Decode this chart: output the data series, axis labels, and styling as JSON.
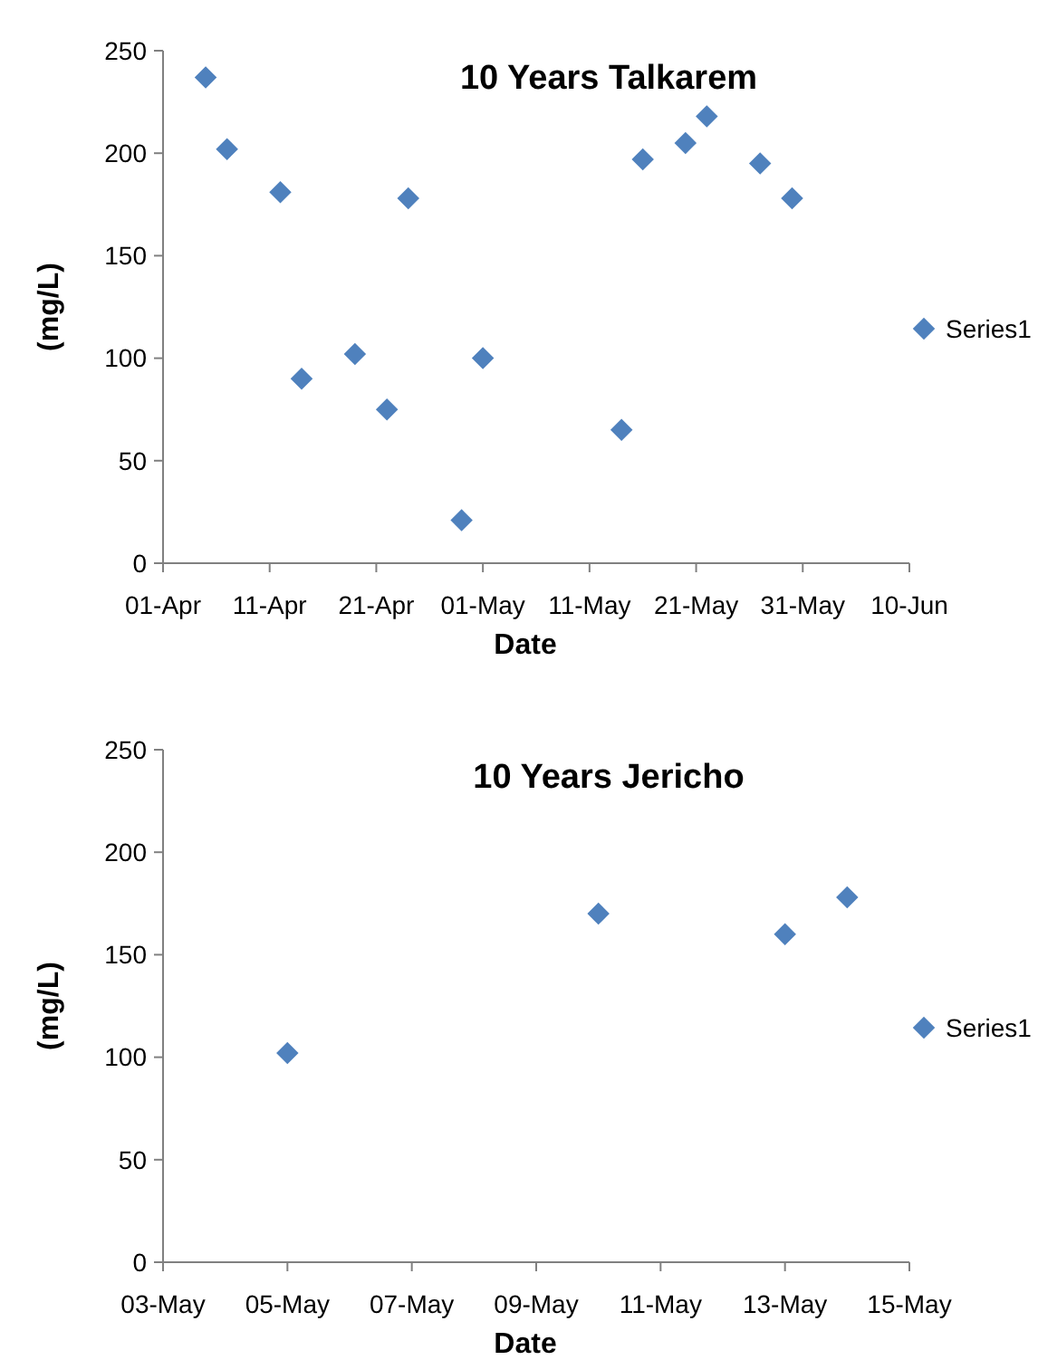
{
  "chart_data": [
    {
      "type": "scatter",
      "title": "10 Years Talkarem",
      "xlabel": "Date",
      "ylabel": "(mg/L)",
      "legend": "right",
      "marker": "diamond",
      "x": [
        "--04-05",
        "--04-07",
        "--04-12",
        "--04-14",
        "--04-19",
        "--04-22",
        "--04-24",
        "--04-29",
        "--05-01",
        "--05-14",
        "--05-16",
        "--05-20",
        "--05-22",
        "--05-27",
        "--05-30"
      ],
      "series": [
        {
          "name": "Series1",
          "color": "#4f81bd",
          "values": [
            237,
            202,
            181,
            90,
            102,
            75,
            178,
            21,
            100,
            65,
            197,
            205,
            218,
            195,
            178
          ]
        }
      ],
      "xlim": [
        "--04-01",
        "--06-10"
      ],
      "xticks": [
        {
          "value": "--04-01",
          "label": "01-Apr"
        },
        {
          "value": "--04-11",
          "label": "11-Apr"
        },
        {
          "value": "--04-21",
          "label": "21-Apr"
        },
        {
          "value": "--05-01",
          "label": "01-May"
        },
        {
          "value": "--05-11",
          "label": "11-May"
        },
        {
          "value": "--05-21",
          "label": "21-May"
        },
        {
          "value": "--05-31",
          "label": "31-May"
        },
        {
          "value": "--06-10",
          "label": "10-Jun"
        }
      ],
      "ylim": [
        0,
        250
      ],
      "yticks": [
        0,
        50,
        100,
        150,
        200,
        250
      ]
    },
    {
      "type": "scatter",
      "title": "10 Years Jericho",
      "xlabel": "Date",
      "ylabel": "(mg/L)",
      "legend": "right",
      "marker": "diamond",
      "x": [
        "--05-05",
        "--05-10",
        "--05-13",
        "--05-14"
      ],
      "series": [
        {
          "name": "Series1",
          "color": "#4f81bd",
          "values": [
            102,
            170,
            160,
            178
          ]
        }
      ],
      "xlim": [
        "--05-03",
        "--05-15"
      ],
      "xticks": [
        {
          "value": "--05-03",
          "label": "03-May"
        },
        {
          "value": "--05-05",
          "label": "05-May"
        },
        {
          "value": "--05-07",
          "label": "07-May"
        },
        {
          "value": "--05-09",
          "label": "09-May"
        },
        {
          "value": "--05-11",
          "label": "11-May"
        },
        {
          "value": "--05-13",
          "label": "13-May"
        },
        {
          "value": "--05-15",
          "label": "15-May"
        }
      ],
      "ylim": [
        0,
        250
      ],
      "yticks": [
        0,
        50,
        100,
        150,
        200,
        250
      ]
    }
  ]
}
